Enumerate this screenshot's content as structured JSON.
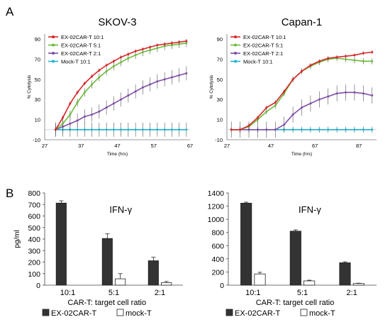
{
  "panel_labels": {
    "a": "A",
    "b": "B"
  },
  "colors": {
    "ex_10_1": "#d9262a",
    "ex_5_1": "#6dbb3b",
    "ex_2_1": "#7f4fa6",
    "mock": "#1fb3d2",
    "error_bar": "#333333",
    "bar_dark": "#333333",
    "bar_white": "#ffffff"
  },
  "chart_data": [
    {
      "type": "line",
      "title": "SKOV-3",
      "xlabel": "Time (hrs)",
      "ylabel": "% Cytolysis",
      "xlim": [
        27,
        67
      ],
      "ylim": [
        -10,
        95
      ],
      "xticks": [
        27,
        37,
        47,
        57,
        67
      ],
      "yticks": [
        -10,
        10,
        30,
        50,
        70,
        90
      ],
      "legend": "top-left",
      "series": [
        {
          "name": "EX-02CAR-T 10:1",
          "color_key": "ex_10_1",
          "error": 2,
          "x": [
            30,
            32,
            34,
            36,
            38,
            40,
            42,
            44,
            46,
            48,
            50,
            52,
            54,
            56,
            58,
            60,
            62,
            64,
            66
          ],
          "y": [
            0,
            12,
            26,
            37,
            46,
            53,
            59,
            64,
            68,
            72,
            75,
            78,
            80,
            82,
            84,
            85,
            86,
            87,
            88
          ]
        },
        {
          "name": "EX-02CAR-T 5:1",
          "color_key": "ex_5_1",
          "error": 4,
          "x": [
            30,
            32,
            34,
            36,
            38,
            40,
            42,
            44,
            46,
            48,
            50,
            52,
            54,
            56,
            58,
            60,
            62,
            64,
            66
          ],
          "y": [
            0,
            6,
            15,
            27,
            37,
            45,
            52,
            58,
            63,
            67,
            71,
            74,
            77,
            79,
            81,
            83,
            84,
            85,
            86
          ]
        },
        {
          "name": "EX-02CAR-T 2:1",
          "color_key": "ex_2_1",
          "error": 7,
          "x": [
            30,
            32,
            34,
            36,
            38,
            40,
            42,
            44,
            46,
            48,
            50,
            52,
            54,
            56,
            58,
            60,
            62,
            64,
            66
          ],
          "y": [
            0,
            3,
            6,
            9,
            13,
            15,
            18,
            22,
            26,
            30,
            34,
            38,
            42,
            45,
            48,
            50,
            52,
            54,
            56
          ]
        },
        {
          "name": "Mock-T 10:1",
          "color_key": "mock",
          "error": 7,
          "x": [
            30,
            32,
            34,
            36,
            38,
            40,
            42,
            44,
            46,
            48,
            50,
            52,
            54,
            56,
            58,
            60,
            62,
            64,
            66
          ],
          "y": [
            0,
            0,
            0,
            0,
            0,
            0,
            0,
            0,
            0,
            0,
            0,
            0,
            0,
            0,
            0,
            0,
            0,
            0,
            0
          ]
        }
      ]
    },
    {
      "type": "line",
      "title": "Capan-1",
      "xlabel": "Time (hrs)",
      "ylabel": "% Cytolysis",
      "xlim": [
        27,
        95
      ],
      "ylim": [
        -10,
        95
      ],
      "xticks": [
        27,
        47,
        67,
        87
      ],
      "yticks": [
        -10,
        10,
        30,
        50,
        70,
        90
      ],
      "legend": "top-left",
      "series": [
        {
          "name": "EX-02CAR-T 10:1",
          "color_key": "ex_10_1",
          "error": 2,
          "x": [
            29,
            33,
            37,
            41,
            45,
            49,
            53,
            57,
            61,
            65,
            69,
            73,
            77,
            81,
            85,
            89,
            93
          ],
          "y": [
            0,
            0,
            4,
            12,
            22,
            27,
            38,
            50,
            58,
            64,
            68,
            71,
            72,
            73,
            74,
            76,
            77
          ]
        },
        {
          "name": "EX-02CAR-T 5:1",
          "color_key": "ex_5_1",
          "error": 3,
          "x": [
            29,
            33,
            37,
            41,
            45,
            49,
            53,
            57,
            61,
            65,
            69,
            73,
            77,
            81,
            85,
            89,
            93
          ],
          "y": [
            0,
            0,
            3,
            10,
            18,
            24,
            36,
            50,
            58,
            63,
            67,
            70,
            71,
            70,
            69,
            68,
            68
          ]
        },
        {
          "name": "EX-02CAR-T 2:1",
          "color_key": "ex_2_1",
          "error": 8,
          "x": [
            29,
            33,
            37,
            41,
            45,
            49,
            53,
            57,
            61,
            65,
            69,
            73,
            77,
            81,
            85,
            89,
            93
          ],
          "y": [
            0,
            0,
            0,
            0,
            0,
            0,
            5,
            15,
            22,
            26,
            30,
            33,
            36,
            37,
            37,
            36,
            34
          ]
        },
        {
          "name": "Mock-T 10:1",
          "color_key": "mock",
          "error": 3,
          "x": [
            29,
            33,
            37,
            41,
            45,
            49,
            53,
            57,
            61,
            65,
            69,
            73,
            77,
            81,
            85,
            89,
            93
          ],
          "y": [
            0,
            0,
            0,
            0,
            0,
            0,
            0,
            0,
            0,
            0,
            0,
            0,
            0,
            0,
            0,
            0,
            0
          ]
        }
      ]
    },
    {
      "type": "bar",
      "title": "IFN-γ",
      "xlabel": "CAR-T: target cell ratio",
      "ylabel": "pg/ml",
      "ylim": [
        0,
        800
      ],
      "yticks": [
        0,
        100,
        200,
        300,
        400,
        500,
        600,
        700,
        800
      ],
      "categories": [
        "10:1",
        "5:1",
        "2:1"
      ],
      "legend": "bottom",
      "series": [
        {
          "name": "EX-02CAR-T",
          "color_key": "bar_dark",
          "values": [
            712,
            405,
            212
          ],
          "errors": [
            20,
            40,
            30
          ]
        },
        {
          "name": "mock-T",
          "color_key": "bar_white",
          "values": [
            0,
            55,
            22
          ],
          "errors": [
            0,
            45,
            10
          ]
        }
      ]
    },
    {
      "type": "bar",
      "title": "IFN-γ",
      "xlabel": "CAR-T: target cell ratio",
      "ylabel": "",
      "ylim": [
        0,
        1400
      ],
      "yticks": [
        0,
        200,
        400,
        600,
        800,
        1000,
        1200,
        1400
      ],
      "categories": [
        "10:1",
        "5:1",
        "2:1"
      ],
      "legend": "bottom",
      "series": [
        {
          "name": "EX-02CAR-T",
          "color_key": "bar_dark",
          "values": [
            1245,
            820,
            340
          ],
          "errors": [
            15,
            20,
            15
          ]
        },
        {
          "name": "mock-T",
          "color_key": "bar_white",
          "values": [
            170,
            65,
            25
          ],
          "errors": [
            25,
            10,
            5
          ]
        }
      ]
    }
  ]
}
